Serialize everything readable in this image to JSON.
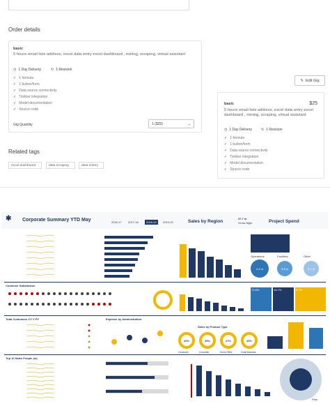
{
  "order": {
    "heading": "Order details",
    "package_name": "basic",
    "package_desc": "5 hours email lists address, excel data entry excel dashboard , mining, scraping, virtual assistant",
    "delivery": "1 Day Delivery",
    "revisions": "1 Revision",
    "features": [
      "1 formula",
      "1 button/form",
      "Data source connectivity",
      "Toolbar integration",
      "Model documentation",
      "Source code"
    ],
    "qty_label": "Gig Quantity",
    "qty_value": "1 ($25)",
    "edit_label": "Edit Gig"
  },
  "summary": {
    "package_name": "basic",
    "price": "$25",
    "package_desc": "5 hours email lists address, excel data entry excel dashboard , mining, scraping, virtual assistant",
    "delivery": "1 Day Delivery",
    "revisions": "1 Revision",
    "features": [
      "1 formula",
      "1 button/form",
      "Data source connectivity",
      "Toolbar integration",
      "Model documentation",
      "Source code"
    ]
  },
  "tags": {
    "heading": "Related tags",
    "items": [
      "excel dashboard",
      "data scraping",
      "data entery"
    ]
  },
  "dashboard": {
    "title": "Corporate Summary YTD May",
    "years": [
      "2016-17",
      "2017-18",
      "2018-19",
      "2019-20"
    ],
    "sales_title": "Sales by Region",
    "project_title": "Project Spend",
    "gross_value": "37.7 m",
    "gross_label": "Gross Mgin",
    "customer_satisfaction": "Customer Satisfaction",
    "total_customers": "Total Customers CY V PY",
    "expense": "Expense by Administration",
    "sales_by_type": "Sales by Product Type",
    "top10": "Top 10 Sales People (m)",
    "donut_values": [
      "20%",
      "39%",
      "27%",
      "20%"
    ],
    "donut_labels": [
      "Consumer",
      "Corporate",
      "Home Office",
      "Small Business"
    ],
    "bubbles": [
      "4.4 m",
      "3.8 m",
      "2.1 m"
    ],
    "bubble_labels": [
      "Operations",
      "Facilities",
      "Other"
    ],
    "top_pct": [
      "71.6%",
      "18.7%",
      "9.7%"
    ],
    "pie_label": "Plan"
  }
}
